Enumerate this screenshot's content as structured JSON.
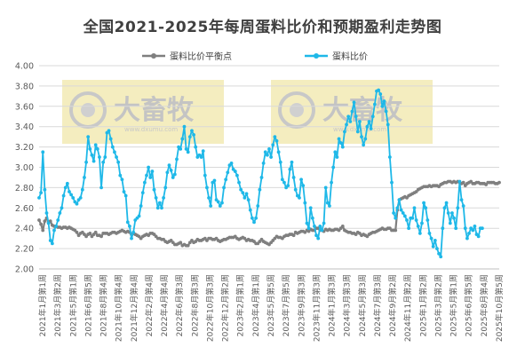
{
  "chart_data": {
    "type": "line",
    "title": "全国2021-2025年每周蛋料比价和预期盈利走势图",
    "xlabel": "",
    "ylabel": "",
    "ylim": [
      2.0,
      4.0
    ],
    "yticks": [
      "4.00",
      "3.80",
      "3.60",
      "3.40",
      "3.20",
      "3.00",
      "2.80",
      "2.60",
      "2.40",
      "2.20",
      "2.00"
    ],
    "x_tick_labels": [
      "2021年1月第1周",
      "2021年3月第2周",
      "2021年5月第1周",
      "2021年6月第5周",
      "2021年8月第4周",
      "2021年10月第4周",
      "2021年12月第4周",
      "2022年2月第4周",
      "2022年4月第4周",
      "2022年6月第3周",
      "2022年8月第3周",
      "2022年10月第3周",
      "2022年12月第2周",
      "2023年2月第1周",
      "2023年4月第1周",
      "2023年5月第5周",
      "2023年7月第5周",
      "2023年9月第3周",
      "2023年11月第3周",
      "2024年1月第3周",
      "2024年3月第3周",
      "2024年5月第3周",
      "2024年7月第3周",
      "2024年9月第2周",
      "2024年11月第2周",
      "2025年1月第2周",
      "2025年3月第2周",
      "2025年5月第1周",
      "2025年6月第5周",
      "2025年8月第4周",
      "2025年10月第5周"
    ],
    "legend_position": "top",
    "grid": true,
    "watermark": "大畜牧",
    "watermark_sub": "www.dxumu.com",
    "series": [
      {
        "name": "蛋料比价平衡点",
        "color": "#7f7f7f",
        "values": [
          2.48,
          2.44,
          2.38,
          2.47,
          2.5,
          2.46,
          2.47,
          2.43,
          2.42,
          2.42,
          2.41,
          2.41,
          2.4,
          2.41,
          2.41,
          2.4,
          2.41,
          2.4,
          2.39,
          2.38,
          2.36,
          2.33,
          2.35,
          2.36,
          2.34,
          2.32,
          2.34,
          2.35,
          2.32,
          2.34,
          2.36,
          2.33,
          2.33,
          2.32,
          2.35,
          2.35,
          2.35,
          2.34,
          2.35,
          2.36,
          2.36,
          2.35,
          2.36,
          2.37,
          2.38,
          2.37,
          2.36,
          2.37,
          2.36,
          2.34,
          2.35,
          2.34,
          2.33,
          2.32,
          2.3,
          2.32,
          2.33,
          2.34,
          2.33,
          2.35,
          2.35,
          2.34,
          2.32,
          2.3,
          2.3,
          2.29,
          2.29,
          2.27,
          2.26,
          2.27,
          2.28,
          2.26,
          2.24,
          2.24,
          2.25,
          2.26,
          2.23,
          2.24,
          2.23,
          2.23,
          2.26,
          2.28,
          2.26,
          2.27,
          2.29,
          2.28,
          2.28,
          2.29,
          2.3,
          2.28,
          2.3,
          2.3,
          2.29,
          2.29,
          2.3,
          2.28,
          2.27,
          2.28,
          2.29,
          2.29,
          2.3,
          2.31,
          2.31,
          2.31,
          2.32,
          2.3,
          2.29,
          2.3,
          2.31,
          2.3,
          2.28,
          2.29,
          2.28,
          2.28,
          2.27,
          2.25,
          2.25,
          2.27,
          2.29,
          2.27,
          2.26,
          2.25,
          2.24,
          2.26,
          2.28,
          2.3,
          2.32,
          2.31,
          2.31,
          2.3,
          2.32,
          2.33,
          2.33,
          2.34,
          2.34,
          2.33,
          2.36,
          2.35,
          2.36,
          2.37,
          2.37,
          2.36,
          2.38,
          2.37,
          2.39,
          2.38,
          2.38,
          2.4,
          2.4,
          2.38,
          2.38,
          2.37,
          2.39,
          2.38,
          2.39,
          2.38,
          2.38,
          2.39,
          2.39,
          2.38,
          2.4,
          2.42,
          2.38,
          2.37,
          2.36,
          2.36,
          2.35,
          2.35,
          2.34,
          2.36,
          2.35,
          2.33,
          2.34,
          2.33,
          2.32,
          2.34,
          2.35,
          2.36,
          2.36,
          2.37,
          2.38,
          2.39,
          2.4,
          2.39,
          2.39,
          2.4,
          2.4,
          2.38,
          2.38,
          2.38,
          2.58,
          2.68,
          2.69,
          2.7,
          2.71,
          2.7,
          2.72,
          2.73,
          2.74,
          2.75,
          2.76,
          2.78,
          2.79,
          2.8,
          2.81,
          2.81,
          2.81,
          2.82,
          2.81,
          2.82,
          2.82,
          2.82,
          2.81,
          2.83,
          2.84,
          2.85,
          2.85,
          2.86,
          2.86,
          2.85,
          2.86,
          2.85,
          2.86,
          2.85,
          2.84,
          2.85,
          2.82,
          2.84,
          2.85,
          2.86,
          2.84,
          2.84,
          2.85,
          2.85,
          2.84,
          2.84,
          2.84,
          2.83,
          2.85,
          2.85,
          2.85,
          2.85,
          2.84,
          2.84,
          2.85
        ]
      },
      {
        "name": "蛋料比价",
        "color": "#1eb8e8",
        "values": [
          2.7,
          2.75,
          3.15,
          2.78,
          2.55,
          2.45,
          2.28,
          2.25,
          2.38,
          2.42,
          2.48,
          2.55,
          2.6,
          2.72,
          2.8,
          2.84,
          2.76,
          2.73,
          2.7,
          2.66,
          2.64,
          2.68,
          2.7,
          2.78,
          2.9,
          3.05,
          3.3,
          3.18,
          3.12,
          3.06,
          3.22,
          3.18,
          3.1,
          2.8,
          3.05,
          3.1,
          3.34,
          3.36,
          3.28,
          3.2,
          3.15,
          3.1,
          3.05,
          2.92,
          2.88,
          2.76,
          2.72,
          2.46,
          2.42,
          2.3,
          2.36,
          2.48,
          2.5,
          2.52,
          2.62,
          2.75,
          2.85,
          2.92,
          3.0,
          2.9,
          2.96,
          2.78,
          2.7,
          2.6,
          2.65,
          2.6,
          2.7,
          2.8,
          2.95,
          3.02,
          2.97,
          2.9,
          2.93,
          3.08,
          3.2,
          3.18,
          3.28,
          3.4,
          3.18,
          3.15,
          3.3,
          3.36,
          3.32,
          3.2,
          3.1,
          3.12,
          3.1,
          3.16,
          2.92,
          2.8,
          2.7,
          2.62,
          2.85,
          2.87,
          2.68,
          2.66,
          2.62,
          2.65,
          2.8,
          2.88,
          2.95,
          3.02,
          3.04,
          2.98,
          2.96,
          2.92,
          2.85,
          2.78,
          2.75,
          2.7,
          2.74,
          2.68,
          2.58,
          2.5,
          2.46,
          2.5,
          2.62,
          2.78,
          2.9,
          3.04,
          3.15,
          3.12,
          3.18,
          3.1,
          3.22,
          3.3,
          3.26,
          3.15,
          3.05,
          2.88,
          2.85,
          2.8,
          2.82,
          2.98,
          3.05,
          2.9,
          2.78,
          2.72,
          2.7,
          2.88,
          2.82,
          2.65,
          2.45,
          2.4,
          2.6,
          2.5,
          2.42,
          2.33,
          2.3,
          2.42,
          2.38,
          2.45,
          2.8,
          2.65,
          2.62,
          2.85,
          3.0,
          3.15,
          3.1,
          3.28,
          3.24,
          3.2,
          3.35,
          3.42,
          3.5,
          3.45,
          3.55,
          3.64,
          3.5,
          3.35,
          3.45,
          3.3,
          3.22,
          3.28,
          3.4,
          3.45,
          3.38,
          3.5,
          3.62,
          3.75,
          3.76,
          3.72,
          3.6,
          3.65,
          3.55,
          3.42,
          3.1,
          2.85,
          2.55,
          2.5,
          2.6,
          2.68,
          2.58,
          2.55,
          2.52,
          2.48,
          2.4,
          2.5,
          2.5,
          2.6,
          2.48,
          2.42,
          2.35,
          2.45,
          2.65,
          2.6,
          2.48,
          2.35,
          2.3,
          2.22,
          2.28,
          2.2,
          2.15,
          2.12,
          2.4,
          2.6,
          2.65,
          2.55,
          2.45,
          2.55,
          2.5,
          2.4,
          2.6,
          2.86,
          2.68,
          2.62,
          2.4,
          2.3,
          2.35,
          2.4,
          2.38,
          2.42,
          2.34,
          2.32,
          2.4,
          2.4
        ]
      }
    ]
  }
}
